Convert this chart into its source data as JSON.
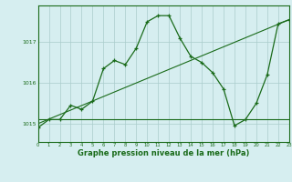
{
  "background_color": "#d6eef0",
  "grid_color": "#aacccc",
  "line_color": "#1a6b1a",
  "marker_color": "#1a6b1a",
  "xlabel": "Graphe pression niveau de la mer (hPa)",
  "xlabel_fontsize": 6.0,
  "ylabel_ticks": [
    1015,
    1016,
    1017
  ],
  "xlim": [
    0,
    23
  ],
  "ylim": [
    1014.55,
    1017.9
  ],
  "xticks": [
    0,
    1,
    2,
    3,
    4,
    5,
    6,
    7,
    8,
    9,
    10,
    11,
    12,
    13,
    14,
    15,
    16,
    17,
    18,
    19,
    20,
    21,
    22,
    23
  ],
  "series1_x": [
    0,
    1,
    2,
    3,
    4,
    5,
    6,
    7,
    8,
    9,
    10,
    11,
    12,
    13,
    14,
    15,
    16,
    17,
    18,
    19,
    20,
    21,
    22,
    23
  ],
  "series1_y": [
    1014.9,
    1015.1,
    1015.1,
    1015.45,
    1015.35,
    1015.55,
    1016.35,
    1016.55,
    1016.45,
    1016.85,
    1017.5,
    1017.65,
    1017.65,
    1017.1,
    1016.65,
    1016.5,
    1016.25,
    1015.85,
    1014.95,
    1015.1,
    1015.5,
    1016.2,
    1017.45,
    1017.55
  ],
  "series2_x": [
    0,
    23
  ],
  "series2_y": [
    1015.1,
    1015.1
  ],
  "series3_x": [
    0,
    23
  ],
  "series3_y": [
    1015.0,
    1017.55
  ]
}
